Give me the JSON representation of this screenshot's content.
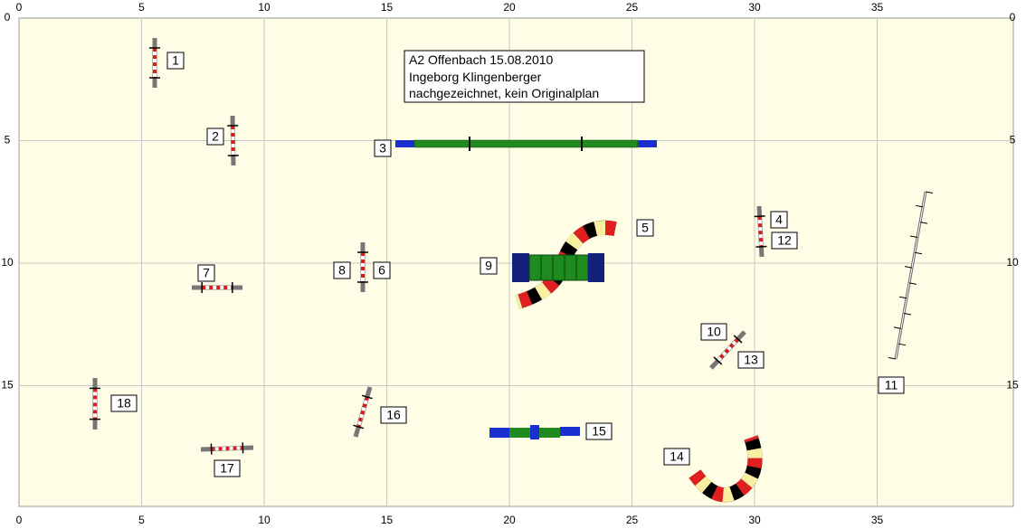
{
  "axes": {
    "x_ticks": [
      0,
      5,
      10,
      15,
      20,
      25,
      30,
      35
    ],
    "y_ticks": [
      0,
      5,
      10,
      15
    ]
  },
  "info": [
    "A2 Offenbach 15.08.2010",
    "Ingeborg Klingenberger",
    "nachgezeichnet, kein Originalplan"
  ],
  "labels": [
    "1",
    "2",
    "3",
    "4",
    "5",
    "6",
    "7",
    "8",
    "9",
    "10",
    "11",
    "12",
    "13",
    "14",
    "15",
    "16",
    "17",
    "18"
  ]
}
